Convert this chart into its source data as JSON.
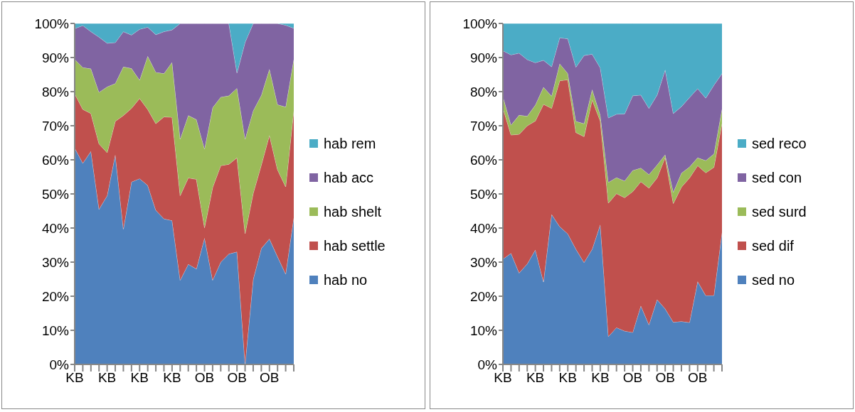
{
  "chart_data": [
    {
      "type": "area",
      "stacked": true,
      "legend": "right",
      "categories": [
        "KB",
        null,
        null,
        null,
        "KB",
        null,
        null,
        null,
        "KB",
        null,
        null,
        null,
        "KB",
        null,
        null,
        null,
        "OB",
        null,
        null,
        null,
        "OB",
        null,
        null,
        null,
        "OB",
        null,
        null,
        null
      ],
      "ylim": [
        0,
        100
      ],
      "yticks": [
        {
          "value": 0,
          "label": "0%"
        },
        {
          "value": 10,
          "label": "10%"
        },
        {
          "value": 20,
          "label": "20%"
        },
        {
          "value": 30,
          "label": "30%"
        },
        {
          "value": 40,
          "label": "40%"
        },
        {
          "value": 50,
          "label": "50%"
        },
        {
          "value": 60,
          "label": "60%"
        },
        {
          "value": 70,
          "label": "70%"
        },
        {
          "value": 80,
          "label": "80%"
        },
        {
          "value": 90,
          "label": "90%"
        },
        {
          "value": 100,
          "label": "100%"
        }
      ],
      "series": [
        {
          "name": "hab no",
          "color": "#4f81bd",
          "values": [
            63.5,
            59,
            62.5,
            45.5,
            49.5,
            61.5,
            39.7,
            53.5,
            54.5,
            52.5,
            45.2,
            42.7,
            42.2,
            24.7,
            29.4,
            28,
            37.1,
            24.7,
            30,
            32.4,
            33,
            0,
            25,
            34,
            36.8,
            31.6,
            26.5,
            43
          ]
        },
        {
          "name": "hab settle",
          "color": "#c0504d",
          "values": [
            15.9,
            15.8,
            11.1,
            19.2,
            12.6,
            9.8,
            33.3,
            21.6,
            23.5,
            22.3,
            25.4,
            29.9,
            30.3,
            24.8,
            25.3,
            26.3,
            3,
            27.2,
            28.3,
            26.3,
            27.6,
            38.4,
            25.2,
            24.5,
            30.4,
            25.5,
            25.6,
            31.4
          ]
        },
        {
          "name": "hab shelt",
          "color": "#9bbb59",
          "values": [
            10.1,
            12.3,
            13.1,
            15.1,
            19.3,
            11.1,
            14.3,
            11.7,
            5.4,
            15.6,
            15.1,
            12.7,
            16.1,
            16.6,
            18.3,
            17.5,
            23.1,
            23.4,
            20.1,
            20.1,
            20.4,
            27.7,
            24.2,
            20.4,
            19.4,
            19.1,
            23.4,
            15.1
          ]
        },
        {
          "name": "hab acc",
          "color": "#8064a2",
          "values": [
            9,
            12.3,
            10.9,
            16.2,
            12.8,
            12,
            10.3,
            9.8,
            14.9,
            8.5,
            11,
            12.3,
            9.5,
            33.9,
            27,
            28.2,
            36.8,
            24.7,
            21.6,
            21.2,
            4.5,
            28.4,
            25.6,
            21.1,
            13.4,
            23.8,
            24,
            9.1
          ]
        },
        {
          "name": "hab rem",
          "color": "#4bacc6",
          "values": [
            1.5,
            0.6,
            2.4,
            4,
            5.8,
            5.6,
            2.4,
            3.4,
            1.7,
            1.1,
            3.3,
            2.4,
            1.9,
            0,
            0,
            0,
            0,
            0,
            0,
            0,
            14.5,
            5.5,
            0,
            0,
            0,
            0,
            0.5,
            1.4
          ]
        }
      ]
    },
    {
      "type": "area",
      "stacked": true,
      "legend": "right",
      "categories": [
        "KB",
        null,
        null,
        null,
        "KB",
        null,
        null,
        null,
        "KB",
        null,
        null,
        null,
        "KB",
        null,
        null,
        null,
        "OB",
        null,
        null,
        null,
        "OB",
        null,
        null,
        null,
        "OB",
        null,
        null,
        null
      ],
      "ylim": [
        0,
        100
      ],
      "yticks": [
        {
          "value": 0,
          "label": "0%"
        },
        {
          "value": 10,
          "label": "10%"
        },
        {
          "value": 20,
          "label": "20%"
        },
        {
          "value": 30,
          "label": "30%"
        },
        {
          "value": 40,
          "label": "40%"
        },
        {
          "value": 50,
          "label": "50%"
        },
        {
          "value": 60,
          "label": "60%"
        },
        {
          "value": 70,
          "label": "70%"
        },
        {
          "value": 80,
          "label": "80%"
        },
        {
          "value": 90,
          "label": "90%"
        },
        {
          "value": 100,
          "label": "100%"
        }
      ],
      "series": [
        {
          "name": "sed no",
          "color": "#4f81bd",
          "values": [
            30.9,
            32.6,
            26.8,
            29.5,
            33.6,
            24.2,
            44,
            40.4,
            38.3,
            33.8,
            29.9,
            33.8,
            41,
            8.2,
            10.8,
            9.8,
            9.4,
            17.2,
            11.6,
            19,
            16.3,
            12.4,
            12.6,
            12.3,
            24.3,
            20.2,
            20.2,
            38.7
          ]
        },
        {
          "name": "sed dif",
          "color": "#c0504d",
          "values": [
            44.3,
            34.7,
            40.7,
            40.5,
            37.8,
            52.1,
            31.1,
            42.8,
            45.2,
            34.2,
            36.9,
            43.8,
            30.4,
            39.1,
            39.3,
            39.1,
            41.3,
            36.4,
            40.1,
            35.7,
            44.4,
            34.8,
            39.4,
            42.4,
            34,
            36,
            37.6,
            32
          ]
        },
        {
          "name": "sed surd",
          "color": "#9bbb59",
          "values": [
            3.4,
            2.9,
            5.6,
            2.8,
            4.7,
            5,
            3.6,
            5,
            1.8,
            3.3,
            3.8,
            3,
            1.7,
            6.1,
            4.7,
            4.9,
            6.2,
            4,
            4,
            3.8,
            0.8,
            3.3,
            4.1,
            3.2,
            2.3,
            3.6,
            3.9,
            4.2
          ]
        },
        {
          "name": "sed con",
          "color": "#8064a2",
          "values": [
            13.4,
            20.6,
            18.2,
            16.6,
            12.4,
            7.9,
            8.6,
            7.6,
            10.2,
            15.9,
            20,
            10.4,
            13.9,
            18.9,
            18.6,
            19.7,
            21.9,
            21.4,
            19.4,
            20.5,
            24.9,
            23.1,
            19.5,
            20.4,
            20.3,
            18.3,
            20.2,
            10.4
          ]
        },
        {
          "name": "sed reco",
          "color": "#4bacc6",
          "values": [
            8,
            9.2,
            8.7,
            10.6,
            11.5,
            10.8,
            12.7,
            4.2,
            4.5,
            12.8,
            9.4,
            9,
            13,
            27.7,
            26.6,
            26.5,
            21.2,
            21,
            24.9,
            21,
            13.6,
            26.4,
            24.4,
            21.7,
            19.1,
            21.9,
            18.1,
            14.7
          ]
        }
      ]
    }
  ]
}
